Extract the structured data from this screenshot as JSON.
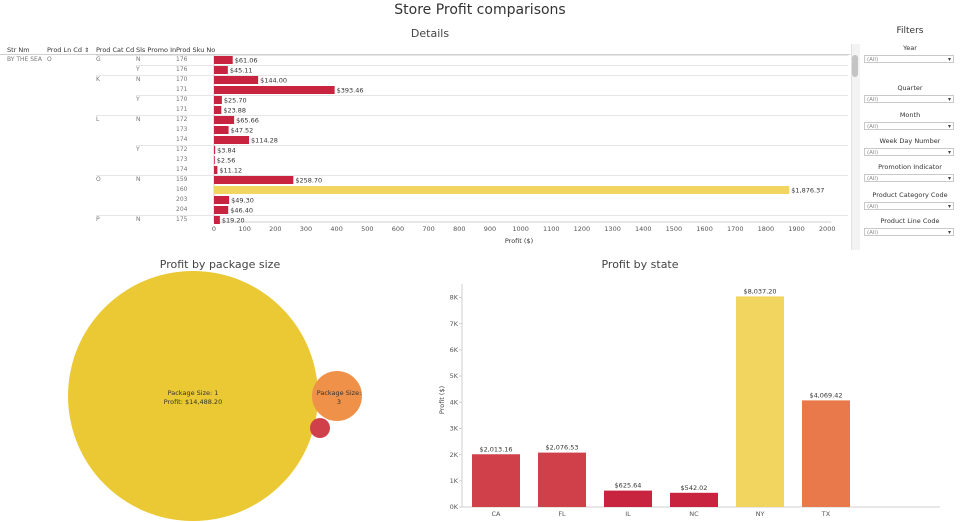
{
  "dashboard_title": "Store Profit comparisons",
  "details": {
    "title": "Details",
    "columns": [
      "Str Nm",
      "Prod Ln Cd",
      "Prod Cat Cd",
      "Sls Promo In",
      "Prod Sku No"
    ],
    "sort_icon": "sort-icon",
    "store": "BY THE SEA",
    "line_code": "O",
    "rows": [
      {
        "cat": "G",
        "promo": "N",
        "sku": "176",
        "value": 61.06,
        "label": "$61.06"
      },
      {
        "cat": "",
        "promo": "Y",
        "sku": "176",
        "value": 45.11,
        "label": "$45.11"
      },
      {
        "cat": "K",
        "promo": "N",
        "sku": "170",
        "value": 144.0,
        "label": "$144.00"
      },
      {
        "cat": "",
        "promo": "",
        "sku": "171",
        "value": 393.46,
        "label": "$393.46"
      },
      {
        "cat": "",
        "promo": "Y",
        "sku": "170",
        "value": 25.7,
        "label": "$25.70"
      },
      {
        "cat": "",
        "promo": "",
        "sku": "171",
        "value": 23.88,
        "label": "$23.88"
      },
      {
        "cat": "L",
        "promo": "N",
        "sku": "172",
        "value": 65.66,
        "label": "$65.66"
      },
      {
        "cat": "",
        "promo": "",
        "sku": "173",
        "value": 47.52,
        "label": "$47.52"
      },
      {
        "cat": "",
        "promo": "",
        "sku": "174",
        "value": 114.28,
        "label": "$114.28"
      },
      {
        "cat": "",
        "promo": "Y",
        "sku": "172",
        "value": 3.84,
        "label": "$3.84"
      },
      {
        "cat": "",
        "promo": "",
        "sku": "173",
        "value": 2.56,
        "label": "$2.56"
      },
      {
        "cat": "",
        "promo": "",
        "sku": "174",
        "value": 11.12,
        "label": "$11.12"
      },
      {
        "cat": "O",
        "promo": "N",
        "sku": "159",
        "value": 258.7,
        "label": "$258.70"
      },
      {
        "cat": "",
        "promo": "",
        "sku": "160",
        "value": 1876.37,
        "label": "$1,876.37",
        "highlight": true
      },
      {
        "cat": "",
        "promo": "",
        "sku": "203",
        "value": 49.3,
        "label": "$49.30"
      },
      {
        "cat": "",
        "promo": "",
        "sku": "204",
        "value": 46.4,
        "label": "$46.40"
      },
      {
        "cat": "P",
        "promo": "N",
        "sku": "175",
        "value": 19.2,
        "label": "$19.20"
      }
    ],
    "x_ticks": [
      "0",
      "100",
      "200",
      "300",
      "400",
      "500",
      "600",
      "700",
      "800",
      "900",
      "1000",
      "1100",
      "1200",
      "1300",
      "1400",
      "1500",
      "1600",
      "1700",
      "1800",
      "1900",
      "2000"
    ],
    "x_axis_label": "Profit ($)"
  },
  "filters": {
    "title": "Filters",
    "items": [
      {
        "label": "Year",
        "value": "(All)"
      },
      {
        "label": "Quarter",
        "value": "(All)"
      },
      {
        "label": "Month",
        "value": "(All)"
      },
      {
        "label": "Week Day Number",
        "value": "(All)"
      },
      {
        "label": "Promotion Indicator",
        "value": "(All)"
      },
      {
        "label": "Product Category Code",
        "value": "(All)"
      },
      {
        "label": "Product Line Code",
        "value": "(All)"
      }
    ]
  },
  "package": {
    "title": "Profit by package size",
    "big_line1": "Package Size: 1",
    "big_line2": "Profit:  $14,488.20",
    "medium_line1": "Package Size:",
    "medium_line2": "3"
  },
  "state": {
    "title": "Profit by state",
    "y_ticks": [
      "0K",
      "1K",
      "2K",
      "3K",
      "4K",
      "5K",
      "6K",
      "7K",
      "8K"
    ],
    "y_axis_label": "Profit ($)"
  },
  "colors": {
    "red": "#c9243f",
    "red_light": "#d0404a",
    "yellow": "#ebc935",
    "yellow_light": "#f2d55f",
    "orange": "#f0914a",
    "orange_dark": "#e9784a"
  },
  "chart_data": [
    {
      "type": "bar",
      "orientation": "horizontal",
      "title": "Details",
      "categories": [
        "G/N/176",
        "G/Y/176",
        "K/N/170",
        "K/N/171",
        "K/Y/170",
        "K/Y/171",
        "L/N/172",
        "L/N/173",
        "L/N/174",
        "L/Y/172",
        "L/Y/173",
        "L/Y/174",
        "O/N/159",
        "O/N/160",
        "O/N/203",
        "O/N/204",
        "P/N/175"
      ],
      "values": [
        61.06,
        45.11,
        144.0,
        393.46,
        25.7,
        23.88,
        65.66,
        47.52,
        114.28,
        3.84,
        2.56,
        11.12,
        258.7,
        1876.37,
        49.3,
        46.4,
        19.2
      ],
      "xlabel": "Profit ($)",
      "xlim": [
        0,
        2000
      ]
    },
    {
      "type": "scatter",
      "subtype": "bubble",
      "title": "Profit by package size",
      "categories": [
        "1",
        "3",
        "other"
      ],
      "values": [
        14488.2,
        null,
        null
      ]
    },
    {
      "type": "bar",
      "title": "Profit by state",
      "categories": [
        "CA",
        "FL",
        "IL",
        "NC",
        "NY",
        "TX"
      ],
      "values": [
        2013.16,
        2076.53,
        625.64,
        542.02,
        8037.2,
        4069.42
      ],
      "labels": [
        "$2,013.16",
        "$2,076.53",
        "$625.64",
        "$542.02",
        "$8,037.20",
        "$4,069.42"
      ],
      "ylabel": "Profit ($)",
      "ylim": [
        0,
        8500
      ],
      "colors": [
        "#d0404a",
        "#d0404a",
        "#c9243f",
        "#c9243f",
        "#f2d55f",
        "#e9784a"
      ]
    }
  ]
}
